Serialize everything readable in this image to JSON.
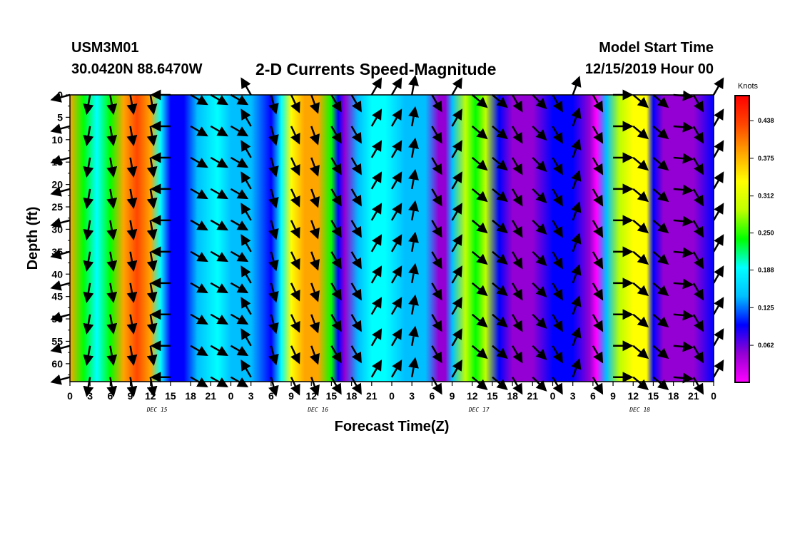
{
  "header": {
    "station_id": "USM3M01",
    "coordinates": "30.0420N 88.6470W",
    "title": "2-D Currents Speed-Magnitude",
    "start_label": "Model Start Time",
    "start_time": "12/15/2019 Hour 00"
  },
  "colorbar": {
    "unit": "Knots",
    "ticks": [
      0.438,
      0.375,
      0.312,
      0.25,
      0.188,
      0.125,
      0.062
    ],
    "tick_labels": [
      "0.438",
      "0.375",
      "0.312",
      "0.250",
      "0.188",
      "0.125",
      "0.062"
    ],
    "range": [
      0.0,
      0.48
    ],
    "palette": [
      "#ff00ff",
      "#9400d3",
      "#0000ff",
      "#00bfff",
      "#00ffff",
      "#00ff00",
      "#bfff00",
      "#ffff00",
      "#ffa500",
      "#ff4500",
      "#ff0000"
    ]
  },
  "chart_data": {
    "type": "heatmap",
    "title": "2-D Currents Speed-Magnitude",
    "xlabel": "Forecast Time(Z)",
    "ylabel": "Depth (ft)",
    "x_ticks": [
      "0",
      "3",
      "6",
      "9",
      "12",
      "15",
      "18",
      "21",
      "0",
      "3",
      "6",
      "9",
      "12",
      "15",
      "18",
      "21",
      "0",
      "3",
      "6",
      "9",
      "12",
      "15",
      "18",
      "21",
      "0",
      "3",
      "6",
      "9",
      "12",
      "15",
      "18",
      "21",
      "0"
    ],
    "day_labels": [
      {
        "label": "DEC 15",
        "hour": 13
      },
      {
        "label": "DEC 16",
        "hour": 37
      },
      {
        "label": "DEC 17",
        "hour": 61
      },
      {
        "label": "DEC 18",
        "hour": 85
      }
    ],
    "x_range_hours": [
      0,
      96
    ],
    "y_ticks": [
      0,
      5,
      10,
      15,
      20,
      25,
      30,
      35,
      40,
      45,
      50,
      55,
      60
    ],
    "ylim": [
      0,
      64
    ],
    "y_inverted": true,
    "units": "Knots",
    "speed_by_hour": {
      "hours": [
        0,
        2,
        4,
        6,
        8,
        10,
        12,
        13.5,
        15,
        17,
        19,
        22,
        24,
        27,
        30,
        31.5,
        33,
        35,
        37,
        39,
        40,
        41,
        43,
        45,
        47,
        50,
        53,
        55,
        56,
        57,
        59,
        60.5,
        62,
        64,
        66,
        69,
        72,
        75,
        77.5,
        78.5,
        80,
        82,
        84,
        86,
        87,
        88.5,
        90,
        93,
        96
      ],
      "speed_knots": [
        0.36,
        0.24,
        0.19,
        0.25,
        0.38,
        0.42,
        0.39,
        0.2,
        0.1,
        0.09,
        0.15,
        0.17,
        0.13,
        0.12,
        0.08,
        0.18,
        0.32,
        0.38,
        0.36,
        0.25,
        0.08,
        0.06,
        0.13,
        0.17,
        0.18,
        0.16,
        0.12,
        0.05,
        0.03,
        0.15,
        0.3,
        0.26,
        0.31,
        0.08,
        0.07,
        0.05,
        0.09,
        0.11,
        0.06,
        0.02,
        0.13,
        0.3,
        0.35,
        0.32,
        0.1,
        0.03,
        0.06,
        0.04,
        0.09
      ]
    },
    "vector_columns_hours": [
      0,
      3,
      6,
      9,
      12,
      15,
      18,
      21,
      24,
      27,
      30,
      33,
      36,
      39,
      42,
      45,
      48,
      51,
      54,
      57,
      60,
      63,
      66,
      69,
      72,
      75,
      78,
      81,
      84,
      87,
      90,
      93,
      96
    ],
    "vector_direction_deg": [
      255,
      190,
      170,
      170,
      170,
      270,
      120,
      120,
      120,
      330,
      165,
      155,
      160,
      150,
      150,
      30,
      30,
      10,
      150,
      30,
      130,
      130,
      150,
      135,
      150,
      20,
      150,
      90,
      130,
      130,
      95,
      150,
      30
    ],
    "vector_depths_ft": [
      0,
      7,
      14,
      21,
      28,
      35,
      42,
      49,
      56,
      63
    ]
  }
}
